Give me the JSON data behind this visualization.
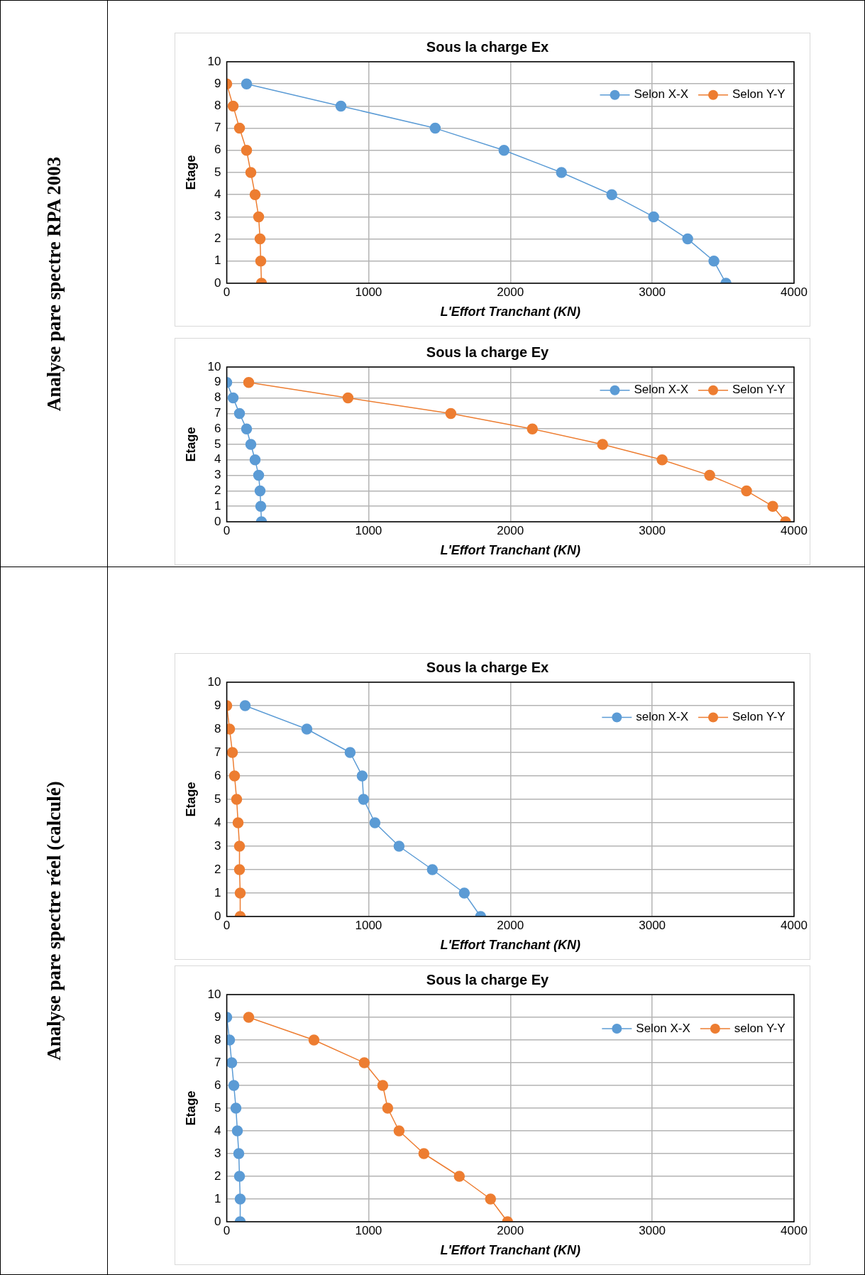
{
  "chart_data": [
    {
      "type": "line",
      "title": "Sous la charge Ex",
      "xlabel": "L'Effort Tranchant (KN)",
      "ylabel": "Etage",
      "annotations": [
        "Analyse pare spectre RPA 2003"
      ],
      "xlim": [
        0,
        4000
      ],
      "xticks": [
        0,
        1000,
        2000,
        3000,
        4000
      ],
      "ylim": [
        0,
        10
      ],
      "yticks": [
        0,
        1,
        2,
        3,
        4,
        5,
        6,
        7,
        8,
        9,
        10
      ],
      "grid": true,
      "legend": "top right",
      "marker": "circle",
      "series": [
        {
          "name": "Selon X-X",
          "color": "#5b9bd5",
          "x": [
            3520,
            3435,
            3250,
            3010,
            2715,
            2360,
            1955,
            1470,
            805,
            140
          ],
          "values": [
            0,
            1,
            2,
            3,
            4,
            5,
            6,
            7,
            8,
            9
          ]
        },
        {
          "name": "Selon Y-Y",
          "color": "#ed7d31",
          "x": [
            245,
            240,
            235,
            225,
            200,
            170,
            140,
            90,
            45,
            0
          ],
          "values": [
            0,
            1,
            2,
            3,
            4,
            5,
            6,
            7,
            8,
            9
          ]
        }
      ]
    },
    {
      "type": "line",
      "title": "Sous la charge Ey",
      "xlabel": "L'Effort Tranchant (KN)",
      "ylabel": "Etage",
      "xlim": [
        0,
        4000
      ],
      "xticks": [
        0,
        1000,
        2000,
        3000,
        4000
      ],
      "ylim": [
        0,
        10
      ],
      "yticks": [
        0,
        1,
        2,
        3,
        4,
        5,
        6,
        7,
        8,
        9,
        10
      ],
      "grid": true,
      "legend": "top right",
      "marker": "circle",
      "series": [
        {
          "name": "Selon X-X",
          "color": "#5b9bd5",
          "x": [
            245,
            240,
            235,
            225,
            200,
            170,
            140,
            90,
            45,
            0
          ],
          "values": [
            0,
            1,
            2,
            3,
            4,
            5,
            6,
            7,
            8,
            9
          ]
        },
        {
          "name": "Selon Y-Y",
          "color": "#ed7d31",
          "x": [
            3940,
            3850,
            3665,
            3405,
            3070,
            2650,
            2155,
            1580,
            855,
            155
          ],
          "values": [
            0,
            1,
            2,
            3,
            4,
            5,
            6,
            7,
            8,
            9
          ]
        }
      ]
    },
    {
      "type": "line",
      "title": "Sous la charge Ex",
      "xlabel": "L'Effort Tranchant (KN)",
      "ylabel": "Etage",
      "annotations": [
        "Analyse pare spectre réel (calculé)"
      ],
      "xlim": [
        0,
        4000
      ],
      "xticks": [
        0,
        1000,
        2000,
        3000,
        4000
      ],
      "ylim": [
        0,
        10
      ],
      "yticks": [
        0,
        1,
        2,
        3,
        4,
        5,
        6,
        7,
        8,
        9,
        10
      ],
      "grid": true,
      "legend": "top right",
      "marker": "circle",
      "series": [
        {
          "name": "selon X-X",
          "color": "#5b9bd5",
          "x": [
            1790,
            1675,
            1450,
            1215,
            1045,
            965,
            955,
            870,
            565,
            130
          ],
          "values": [
            0,
            1,
            2,
            3,
            4,
            5,
            6,
            7,
            8,
            9
          ]
        },
        {
          "name": "Selon Y-Y",
          "color": "#ed7d31",
          "x": [
            95,
            95,
            90,
            90,
            80,
            70,
            55,
            40,
            20,
            0
          ],
          "values": [
            0,
            1,
            2,
            3,
            4,
            5,
            6,
            7,
            8,
            9
          ]
        }
      ]
    },
    {
      "type": "line",
      "title": "Sous la charge Ey",
      "xlabel": "L'Effort Tranchant (KN)",
      "ylabel": "Etage",
      "xlim": [
        0,
        4000
      ],
      "xticks": [
        0,
        1000,
        2000,
        3000,
        4000
      ],
      "ylim": [
        0,
        10
      ],
      "yticks": [
        0,
        1,
        2,
        3,
        4,
        5,
        6,
        7,
        8,
        9,
        10
      ],
      "grid": true,
      "legend": "top right",
      "marker": "circle",
      "series": [
        {
          "name": "Selon X-X",
          "color": "#5b9bd5",
          "x": [
            95,
            95,
            90,
            85,
            75,
            65,
            50,
            35,
            20,
            0
          ],
          "values": [
            0,
            1,
            2,
            3,
            4,
            5,
            6,
            7,
            8,
            9
          ]
        },
        {
          "name": "selon Y-Y",
          "color": "#ed7d31",
          "x": [
            1980,
            1860,
            1640,
            1390,
            1215,
            1135,
            1100,
            970,
            615,
            155
          ],
          "values": [
            0,
            1,
            2,
            3,
            4,
            5,
            6,
            7,
            8,
            9
          ]
        }
      ]
    }
  ]
}
